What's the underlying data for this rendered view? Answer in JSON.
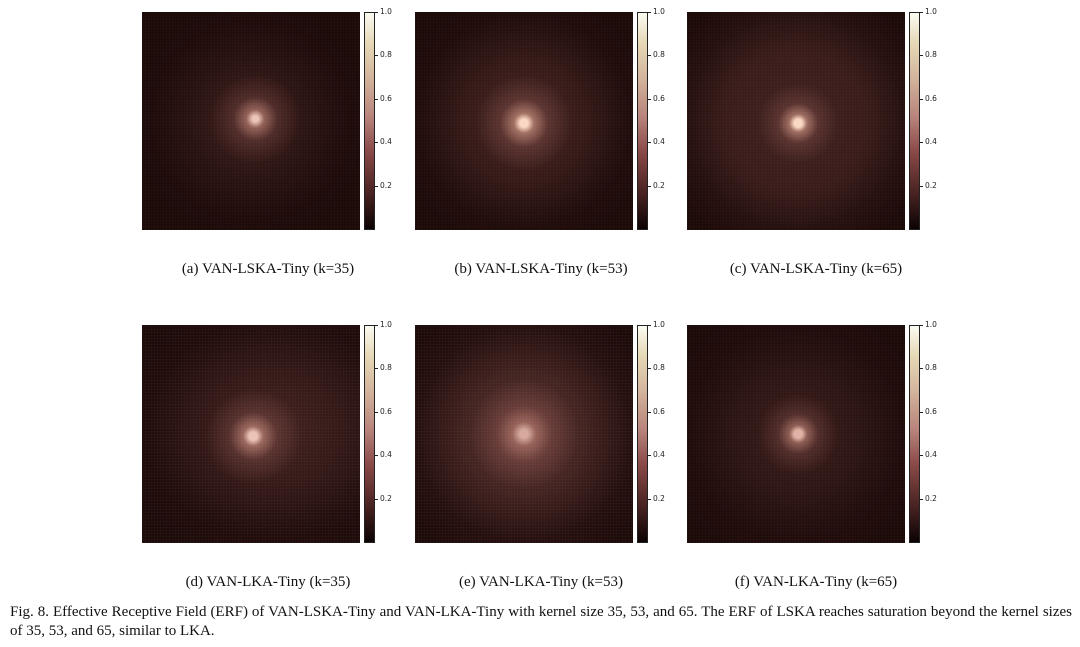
{
  "panels": [
    {
      "caption": "(a) VAN-LSKA-Tiny (k=35)",
      "ticks": [
        "1.0",
        "0.8",
        "0.6",
        "0.4",
        "0.2"
      ]
    },
    {
      "caption": "(b) VAN-LSKA-Tiny (k=53)",
      "ticks": [
        "1.0",
        "0.8",
        "0.6",
        "0.4",
        "0.2"
      ]
    },
    {
      "caption": "(c) VAN-LSKA-Tiny (k=65)",
      "ticks": [
        "1.0",
        "0.8",
        "0.6",
        "0.4",
        "0.2"
      ]
    },
    {
      "caption": "(d) VAN-LKA-Tiny (k=35)",
      "ticks": [
        "1.0",
        "0.8",
        "0.6",
        "0.4",
        "0.2"
      ]
    },
    {
      "caption": "(e) VAN-LKA-Tiny (k=53)",
      "ticks": [
        "1.0",
        "0.8",
        "0.6",
        "0.4",
        "0.2"
      ]
    },
    {
      "caption": "(f) VAN-LKA-Tiny (k=65)",
      "ticks": [
        "1.0",
        "0.8",
        "0.6",
        "0.4",
        "0.2"
      ]
    }
  ],
  "figure_caption": "Fig. 8.  Effective Receptive Field (ERF) of VAN-LSKA-Tiny and VAN-LKA-Tiny with kernel size 35, 53, and 65. The ERF of LSKA reaches saturation beyond the kernel sizes of 35, 53, and 65, similar to LKA.",
  "colormap": [
    "#0c0303",
    "#4d2624",
    "#8a4a48",
    "#b8847c",
    "#d3b49c",
    "#e6d8b6",
    "#fbfbf2"
  ]
}
